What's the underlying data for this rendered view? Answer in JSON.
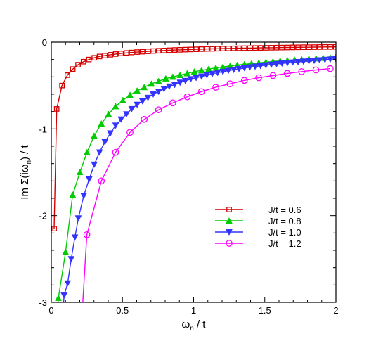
{
  "chart_data": {
    "type": "line",
    "xlabel_main": "ω",
    "xlabel_sub": "n",
    "xlabel_rest": " / t",
    "ylabel_main": "Im Σ(iω",
    "ylabel_sub": "n",
    "ylabel_rest": ") / t",
    "xlim": [
      0,
      2
    ],
    "ylim": [
      -3,
      0
    ],
    "xticks": [
      {
        "value": 0,
        "label": "0"
      },
      {
        "value": 0.5,
        "label": "0.5"
      },
      {
        "value": 1,
        "label": "1"
      },
      {
        "value": 1.5,
        "label": "1.5"
      },
      {
        "value": 2,
        "label": "2"
      }
    ],
    "yticks": [
      {
        "value": 0,
        "label": "0"
      },
      {
        "value": -1,
        "label": "-1"
      },
      {
        "value": -2,
        "label": "-2"
      },
      {
        "value": -3,
        "label": "-3"
      }
    ],
    "grid": false,
    "legend_position": "lower-right",
    "series": [
      {
        "name": "J/t = 0.6",
        "color": "#d40000",
        "marker": "square",
        "x": [
          0.02,
          0.038,
          0.075,
          0.113,
          0.151,
          0.188,
          0.226,
          0.264,
          0.302,
          0.339,
          0.377,
          0.415,
          0.452,
          0.49,
          0.528,
          0.565,
          0.603,
          0.641,
          0.679,
          0.716,
          0.754,
          0.792,
          0.829,
          0.867,
          0.905,
          0.942,
          0.98,
          1.018,
          1.056,
          1.093,
          1.131,
          1.169,
          1.206,
          1.244,
          1.282,
          1.319,
          1.357,
          1.395,
          1.432,
          1.47,
          1.508,
          1.546,
          1.583,
          1.621,
          1.659,
          1.696,
          1.734,
          1.772,
          1.81,
          1.847,
          1.885,
          1.923,
          1.96,
          1.998
        ],
        "y": [
          -2.15,
          -0.77,
          -0.5,
          -0.38,
          -0.31,
          -0.26,
          -0.225,
          -0.2,
          -0.18,
          -0.165,
          -0.155,
          -0.145,
          -0.137,
          -0.13,
          -0.124,
          -0.119,
          -0.114,
          -0.11,
          -0.106,
          -0.102,
          -0.099,
          -0.096,
          -0.093,
          -0.09,
          -0.088,
          -0.086,
          -0.084,
          -0.082,
          -0.08,
          -0.078,
          -0.077,
          -0.075,
          -0.074,
          -0.072,
          -0.071,
          -0.07,
          -0.069,
          -0.068,
          -0.067,
          -0.066,
          -0.065,
          -0.064,
          -0.063,
          -0.062,
          -0.061,
          -0.06,
          -0.059,
          -0.058,
          -0.058,
          -0.057,
          -0.056,
          -0.055,
          -0.055,
          -0.054
        ]
      },
      {
        "name": "J/t = 0.8",
        "color": "#00cc00",
        "marker": "triangle-up",
        "x": [
          0.05,
          0.1,
          0.15,
          0.201,
          0.251,
          0.301,
          0.352,
          0.402,
          0.452,
          0.503,
          0.553,
          0.603,
          0.653,
          0.704,
          0.754,
          0.804,
          0.854,
          0.905,
          0.955,
          1.005,
          1.056,
          1.106,
          1.156,
          1.206,
          1.257,
          1.307,
          1.357,
          1.407,
          1.458,
          1.508,
          1.558,
          1.608,
          1.659,
          1.709,
          1.759,
          1.81,
          1.86,
          1.91,
          1.96,
          1.998
        ],
        "y": [
          -2.95,
          -2.42,
          -1.76,
          -1.5,
          -1.27,
          -1.08,
          -0.94,
          -0.83,
          -0.74,
          -0.67,
          -0.61,
          -0.56,
          -0.52,
          -0.48,
          -0.45,
          -0.42,
          -0.4,
          -0.38,
          -0.36,
          -0.34,
          -0.325,
          -0.31,
          -0.297,
          -0.285,
          -0.274,
          -0.264,
          -0.255,
          -0.246,
          -0.238,
          -0.23,
          -0.223,
          -0.216,
          -0.21,
          -0.204,
          -0.198,
          -0.193,
          -0.188,
          -0.183,
          -0.178,
          -0.174
        ]
      },
      {
        "name": "J/t = 1.0",
        "color": "#3333ff",
        "marker": "triangle-down",
        "x": [
          0.09,
          0.115,
          0.14,
          0.166,
          0.19,
          0.228,
          0.266,
          0.302,
          0.339,
          0.377,
          0.415,
          0.452,
          0.49,
          0.528,
          0.565,
          0.603,
          0.641,
          0.679,
          0.716,
          0.754,
          0.792,
          0.829,
          0.867,
          0.905,
          0.942,
          0.98,
          1.018,
          1.056,
          1.093,
          1.131,
          1.169,
          1.206,
          1.244,
          1.282,
          1.319,
          1.357,
          1.395,
          1.432,
          1.47,
          1.508,
          1.546,
          1.583,
          1.621,
          1.659,
          1.696,
          1.734,
          1.772,
          1.81,
          1.847,
          1.885,
          1.923,
          1.96,
          1.998
        ],
        "y": [
          -2.92,
          -2.78,
          -2.5,
          -2.25,
          -2.03,
          -1.77,
          -1.58,
          -1.41,
          -1.27,
          -1.15,
          -1.05,
          -0.96,
          -0.89,
          -0.83,
          -0.77,
          -0.72,
          -0.68,
          -0.64,
          -0.6,
          -0.57,
          -0.54,
          -0.51,
          -0.49,
          -0.465,
          -0.445,
          -0.425,
          -0.41,
          -0.395,
          -0.38,
          -0.365,
          -0.352,
          -0.34,
          -0.328,
          -0.317,
          -0.307,
          -0.298,
          -0.289,
          -0.281,
          -0.273,
          -0.265,
          -0.258,
          -0.251,
          -0.245,
          -0.239,
          -0.233,
          -0.228,
          -0.222,
          -0.217,
          -0.212,
          -0.207,
          -0.202,
          -0.198,
          -0.193
        ]
      },
      {
        "name": "J/t = 1.2",
        "color": "#ff00ff",
        "marker": "circle",
        "x": [
          0.25,
          0.352,
          0.452,
          0.553,
          0.653,
          0.754,
          0.854,
          0.955,
          1.055,
          1.156,
          1.256,
          1.357,
          1.457,
          1.558,
          1.658,
          1.759,
          1.859,
          1.96
        ],
        "y": [
          -2.22,
          -1.6,
          -1.27,
          -1.04,
          -0.89,
          -0.78,
          -0.7,
          -0.63,
          -0.57,
          -0.52,
          -0.48,
          -0.44,
          -0.41,
          -0.385,
          -0.36,
          -0.34,
          -0.32,
          -0.305
        ]
      }
    ]
  }
}
